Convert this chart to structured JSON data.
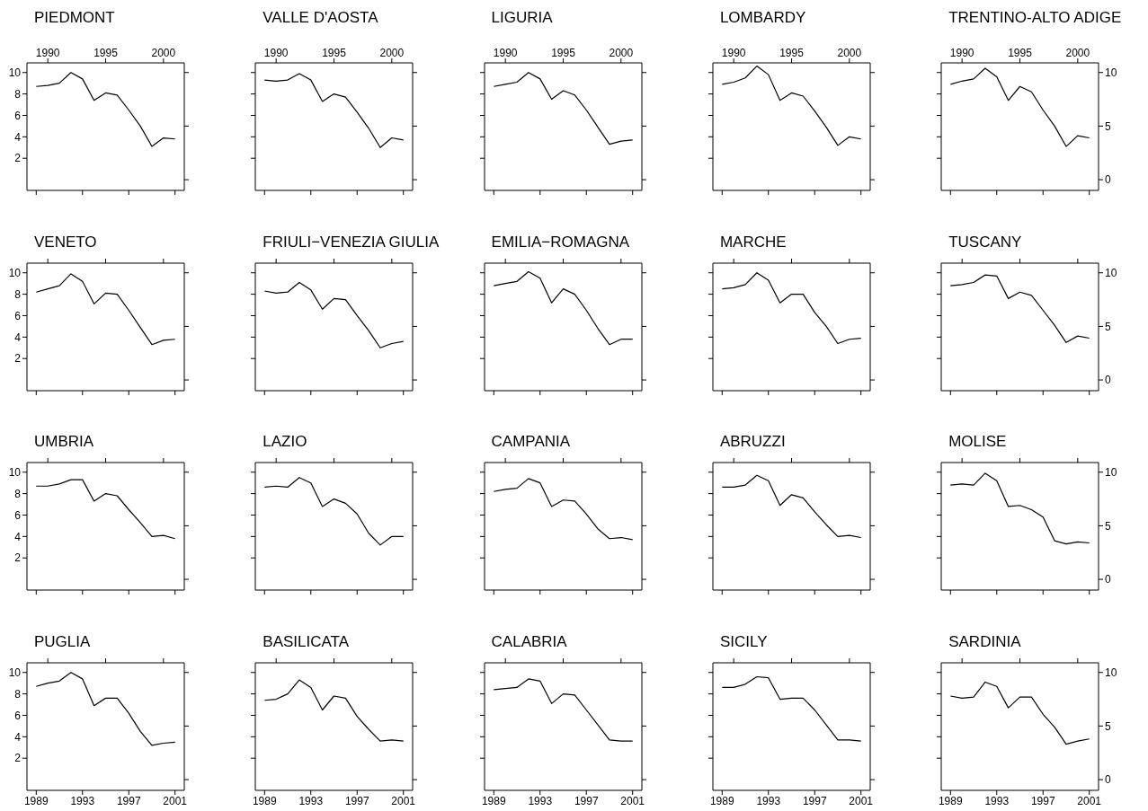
{
  "chart_data": [
    {
      "type": "line",
      "title": "PIEDMONT",
      "x": [
        1989,
        1990,
        1991,
        1992,
        1993,
        1994,
        1995,
        1996,
        1997,
        1998,
        1999,
        2000,
        2001
      ],
      "series": [
        {
          "color": "#000000",
          "values": [
            8.7,
            8.8,
            9.0,
            10.0,
            9.4,
            7.4,
            8.1,
            7.9,
            6.5,
            5.0,
            3.1,
            3.9,
            3.8
          ]
        }
      ],
      "xlim": [
        1988.2,
        2001.8
      ],
      "x2lim": [
        1988.2,
        2001.8
      ],
      "ylim": [
        -1,
        10.9
      ],
      "x2ticks": [
        1990,
        1995,
        2000
      ],
      "yticks": [
        2,
        4,
        6,
        8,
        10
      ]
    },
    {
      "type": "line",
      "title": "VALLE D'AOSTA",
      "x": [
        1989,
        1990,
        1991,
        1992,
        1993,
        1994,
        1995,
        1996,
        1997,
        1998,
        1999,
        2000,
        2001
      ],
      "series": [
        {
          "color": "#000000",
          "values": [
            9.3,
            9.2,
            9.3,
            9.9,
            9.3,
            7.3,
            8.0,
            7.7,
            6.3,
            4.8,
            3.0,
            3.9,
            3.7
          ]
        }
      ],
      "xlim": [
        1988.2,
        2001.8
      ],
      "x2lim": [
        1988.2,
        2001.8
      ],
      "ylim": [
        -1,
        10.9
      ],
      "x2ticks": [
        1990,
        1995,
        2000
      ],
      "tick_labels": "x"
    },
    {
      "type": "line",
      "title": "LIGURIA",
      "x": [
        1989,
        1990,
        1991,
        1992,
        1993,
        1994,
        1995,
        1996,
        1997,
        1998,
        1999,
        2000,
        2001
      ],
      "series": [
        {
          "color": "#000000",
          "values": [
            8.7,
            8.9,
            9.1,
            10.0,
            9.4,
            7.5,
            8.3,
            7.9,
            6.5,
            4.9,
            3.3,
            3.6,
            3.7
          ]
        }
      ],
      "xlim": [
        1988.2,
        2001.8
      ],
      "x2lim": [
        1988.2,
        2001.8
      ],
      "ylim": [
        -1,
        10.9
      ],
      "x2ticks": [
        1990,
        1995,
        2000
      ],
      "tick_labels": "x"
    },
    {
      "type": "line",
      "title": "LOMBARDY",
      "x": [
        1989,
        1990,
        1991,
        1992,
        1993,
        1994,
        1995,
        1996,
        1997,
        1998,
        1999,
        2000,
        2001
      ],
      "series": [
        {
          "color": "#000000",
          "values": [
            8.9,
            9.1,
            9.5,
            10.6,
            9.8,
            7.4,
            8.1,
            7.8,
            6.4,
            4.9,
            3.2,
            4.0,
            3.8
          ]
        }
      ],
      "xlim": [
        1988.2,
        2001.8
      ],
      "x2lim": [
        1988.2,
        2001.8
      ],
      "ylim": [
        -1,
        10.9
      ],
      "x2ticks": [
        1990,
        1995,
        2000
      ],
      "tick_labels": "x"
    },
    {
      "type": "line",
      "title": "TRENTINO-ALTO ADIGE",
      "x": [
        1989,
        1990,
        1991,
        1992,
        1993,
        1994,
        1995,
        1996,
        1997,
        1998,
        1999,
        2000,
        2001
      ],
      "series": [
        {
          "color": "#000000",
          "values": [
            8.9,
            9.2,
            9.4,
            10.4,
            9.6,
            7.4,
            8.7,
            8.2,
            6.5,
            5.0,
            3.1,
            4.1,
            3.9
          ]
        }
      ],
      "xlim": [
        1988.2,
        2001.8
      ],
      "x2lim": [
        1988.2,
        2001.8
      ],
      "ylim": [
        -1,
        10.9
      ],
      "y2lim": [
        -1,
        10.9
      ],
      "x2ticks": [
        1990,
        1995,
        2000
      ],
      "y2ticks": [
        0,
        5,
        10
      ]
    },
    {
      "type": "line",
      "title": "VENETO",
      "x": [
        1989,
        1990,
        1991,
        1992,
        1993,
        1994,
        1995,
        1996,
        1997,
        1998,
        1999,
        2000,
        2001
      ],
      "series": [
        {
          "color": "#000000",
          "values": [
            8.2,
            8.5,
            8.8,
            9.9,
            9.2,
            7.1,
            8.1,
            8.0,
            6.5,
            4.9,
            3.3,
            3.7,
            3.8
          ]
        }
      ],
      "xlim": [
        1988.2,
        2001.8
      ],
      "ylim": [
        -1,
        10.9
      ],
      "yticks": [
        2,
        4,
        6,
        8,
        10
      ],
      "tick_labels": "y"
    },
    {
      "type": "line",
      "title": "FRIULI−VENEZIA GIULIA",
      "x": [
        1989,
        1990,
        1991,
        1992,
        1993,
        1994,
        1995,
        1996,
        1997,
        1998,
        1999,
        2000,
        2001
      ],
      "series": [
        {
          "color": "#000000",
          "values": [
            8.3,
            8.1,
            8.2,
            9.1,
            8.4,
            6.6,
            7.6,
            7.5,
            6.0,
            4.6,
            3.0,
            3.4,
            3.6
          ]
        }
      ],
      "xlim": [
        1988.2,
        2001.8
      ],
      "ylim": [
        -1,
        10.9
      ],
      "tick_labels": false
    },
    {
      "type": "line",
      "title": "EMILIA−ROMAGNA",
      "x": [
        1989,
        1990,
        1991,
        1992,
        1993,
        1994,
        1995,
        1996,
        1997,
        1998,
        1999,
        2000,
        2001
      ],
      "series": [
        {
          "color": "#000000",
          "values": [
            8.8,
            9.0,
            9.2,
            10.1,
            9.5,
            7.2,
            8.5,
            8.0,
            6.5,
            4.8,
            3.3,
            3.8,
            3.8
          ]
        }
      ],
      "xlim": [
        1988.2,
        2001.8
      ],
      "ylim": [
        -1,
        10.9
      ],
      "tick_labels": false
    },
    {
      "type": "line",
      "title": "MARCHE",
      "x": [
        1989,
        1990,
        1991,
        1992,
        1993,
        1994,
        1995,
        1996,
        1997,
        1998,
        1999,
        2000,
        2001
      ],
      "series": [
        {
          "color": "#000000",
          "values": [
            8.5,
            8.6,
            8.9,
            10.0,
            9.3,
            7.2,
            8.0,
            8.0,
            6.3,
            5.0,
            3.4,
            3.8,
            3.9
          ]
        }
      ],
      "xlim": [
        1988.2,
        2001.8
      ],
      "ylim": [
        -1,
        10.9
      ],
      "tick_labels": false
    },
    {
      "type": "line",
      "title": "TUSCANY",
      "x": [
        1989,
        1990,
        1991,
        1992,
        1993,
        1994,
        1995,
        1996,
        1997,
        1998,
        1999,
        2000,
        2001
      ],
      "series": [
        {
          "color": "#000000",
          "values": [
            8.8,
            8.9,
            9.1,
            9.8,
            9.7,
            7.6,
            8.2,
            7.9,
            6.5,
            5.1,
            3.5,
            4.1,
            3.9
          ]
        }
      ],
      "xlim": [
        1988.2,
        2001.8
      ],
      "ylim": [
        -1,
        10.9
      ],
      "y2lim": [
        -1,
        10.9
      ],
      "y2ticks": [
        0,
        5,
        10
      ],
      "tick_labels": "y"
    },
    {
      "type": "line",
      "title": "UMBRIA",
      "x": [
        1989,
        1990,
        1991,
        1992,
        1993,
        1994,
        1995,
        1996,
        1997,
        1998,
        1999,
        2000,
        2001
      ],
      "series": [
        {
          "color": "#000000",
          "values": [
            8.7,
            8.7,
            8.9,
            9.3,
            9.3,
            7.3,
            8.0,
            7.8,
            6.5,
            5.3,
            4.0,
            4.1,
            3.8
          ]
        }
      ],
      "xlim": [
        1988.2,
        2001.8
      ],
      "ylim": [
        -1,
        10.9
      ],
      "yticks": [
        2,
        4,
        6,
        8,
        10
      ],
      "tick_labels": "y"
    },
    {
      "type": "line",
      "title": "LAZIO",
      "x": [
        1989,
        1990,
        1991,
        1992,
        1993,
        1994,
        1995,
        1996,
        1997,
        1998,
        1999,
        2000,
        2001
      ],
      "series": [
        {
          "color": "#000000",
          "values": [
            8.6,
            8.7,
            8.6,
            9.5,
            9.0,
            6.8,
            7.5,
            7.1,
            6.1,
            4.3,
            3.2,
            4.0,
            4.0
          ]
        }
      ],
      "xlim": [
        1988.2,
        2001.8
      ],
      "ylim": [
        -1,
        10.9
      ],
      "tick_labels": false
    },
    {
      "type": "line",
      "title": "CAMPANIA",
      "x": [
        1989,
        1990,
        1991,
        1992,
        1993,
        1994,
        1995,
        1996,
        1997,
        1998,
        1999,
        2000,
        2001
      ],
      "series": [
        {
          "color": "#000000",
          "values": [
            8.2,
            8.4,
            8.5,
            9.4,
            9.0,
            6.8,
            7.4,
            7.3,
            6.1,
            4.7,
            3.8,
            3.9,
            3.7
          ]
        }
      ],
      "xlim": [
        1988.2,
        2001.8
      ],
      "ylim": [
        -1,
        10.9
      ],
      "tick_labels": false
    },
    {
      "type": "line",
      "title": "ABRUZZI",
      "x": [
        1989,
        1990,
        1991,
        1992,
        1993,
        1994,
        1995,
        1996,
        1997,
        1998,
        1999,
        2000,
        2001
      ],
      "series": [
        {
          "color": "#000000",
          "values": [
            8.6,
            8.6,
            8.8,
            9.7,
            9.2,
            6.9,
            7.9,
            7.6,
            6.3,
            5.1,
            4.0,
            4.1,
            3.9
          ]
        }
      ],
      "xlim": [
        1988.2,
        2001.8
      ],
      "ylim": [
        -1,
        10.9
      ],
      "tick_labels": false
    },
    {
      "type": "line",
      "title": "MOLISE",
      "x": [
        1989,
        1990,
        1991,
        1992,
        1993,
        1994,
        1995,
        1996,
        1997,
        1998,
        1999,
        2000,
        2001
      ],
      "series": [
        {
          "color": "#000000",
          "values": [
            8.8,
            8.9,
            8.8,
            9.9,
            9.2,
            6.8,
            6.9,
            6.5,
            5.8,
            3.6,
            3.3,
            3.5,
            3.4
          ]
        }
      ],
      "xlim": [
        1988.2,
        2001.8
      ],
      "ylim": [
        -1,
        10.9
      ],
      "y2lim": [
        -1,
        10.9
      ],
      "y2ticks": [
        0,
        5,
        10
      ],
      "tick_labels": "y"
    },
    {
      "type": "line",
      "title": "PUGLIA",
      "x": [
        1989,
        1990,
        1991,
        1992,
        1993,
        1994,
        1995,
        1996,
        1997,
        1998,
        1999,
        2000,
        2001
      ],
      "series": [
        {
          "color": "#000000",
          "values": [
            8.7,
            9.0,
            9.2,
            10.0,
            9.4,
            6.9,
            7.6,
            7.6,
            6.2,
            4.5,
            3.2,
            3.4,
            3.5
          ]
        }
      ],
      "xlim": [
        1988.2,
        2001.8
      ],
      "ylim": [
        -1,
        10.9
      ],
      "xticks": [
        1989,
        1993,
        1997,
        2001
      ],
      "yticks": [
        2,
        4,
        6,
        8,
        10
      ]
    },
    {
      "type": "line",
      "title": "BASILICATA",
      "x": [
        1989,
        1990,
        1991,
        1992,
        1993,
        1994,
        1995,
        1996,
        1997,
        1998,
        1999,
        2000,
        2001
      ],
      "series": [
        {
          "color": "#000000",
          "values": [
            7.4,
            7.5,
            8.0,
            9.3,
            8.6,
            6.5,
            7.8,
            7.6,
            5.9,
            4.7,
            3.6,
            3.7,
            3.6
          ]
        }
      ],
      "xlim": [
        1988.2,
        2001.8
      ],
      "ylim": [
        -1,
        10.9
      ],
      "xticks": [
        1989,
        1993,
        1997,
        2001
      ],
      "tick_labels": "x"
    },
    {
      "type": "line",
      "title": "CALABRIA",
      "x": [
        1989,
        1990,
        1991,
        1992,
        1993,
        1994,
        1995,
        1996,
        1997,
        1998,
        1999,
        2000,
        2001
      ],
      "series": [
        {
          "color": "#000000",
          "values": [
            8.4,
            8.5,
            8.6,
            9.4,
            9.2,
            7.1,
            8.0,
            7.9,
            6.5,
            5.1,
            3.7,
            3.6,
            3.6
          ]
        }
      ],
      "xlim": [
        1988.2,
        2001.8
      ],
      "ylim": [
        -1,
        10.9
      ],
      "xticks": [
        1989,
        1993,
        1997,
        2001
      ],
      "tick_labels": "x"
    },
    {
      "type": "line",
      "title": "SICILY",
      "x": [
        1989,
        1990,
        1991,
        1992,
        1993,
        1994,
        1995,
        1996,
        1997,
        1998,
        1999,
        2000,
        2001
      ],
      "series": [
        {
          "color": "#000000",
          "values": [
            8.6,
            8.6,
            8.9,
            9.6,
            9.5,
            7.5,
            7.6,
            7.6,
            6.5,
            5.1,
            3.7,
            3.7,
            3.6
          ]
        }
      ],
      "xlim": [
        1988.2,
        2001.8
      ],
      "ylim": [
        -1,
        10.9
      ],
      "xticks": [
        1989,
        1993,
        1997,
        2001
      ],
      "tick_labels": "x"
    },
    {
      "type": "line",
      "title": "SARDINIA",
      "x": [
        1989,
        1990,
        1991,
        1992,
        1993,
        1994,
        1995,
        1996,
        1997,
        1998,
        1999,
        2000,
        2001
      ],
      "series": [
        {
          "color": "#000000",
          "values": [
            7.8,
            7.6,
            7.7,
            9.1,
            8.7,
            6.7,
            7.7,
            7.7,
            6.1,
            4.9,
            3.3,
            3.6,
            3.8
          ]
        }
      ],
      "xlim": [
        1988.2,
        2001.8
      ],
      "ylim": [
        -1,
        10.9
      ],
      "y2lim": [
        -1,
        10.9
      ],
      "xticks": [
        1989,
        1993,
        1997,
        2001
      ],
      "y2ticks": [
        0,
        5,
        10
      ]
    }
  ]
}
